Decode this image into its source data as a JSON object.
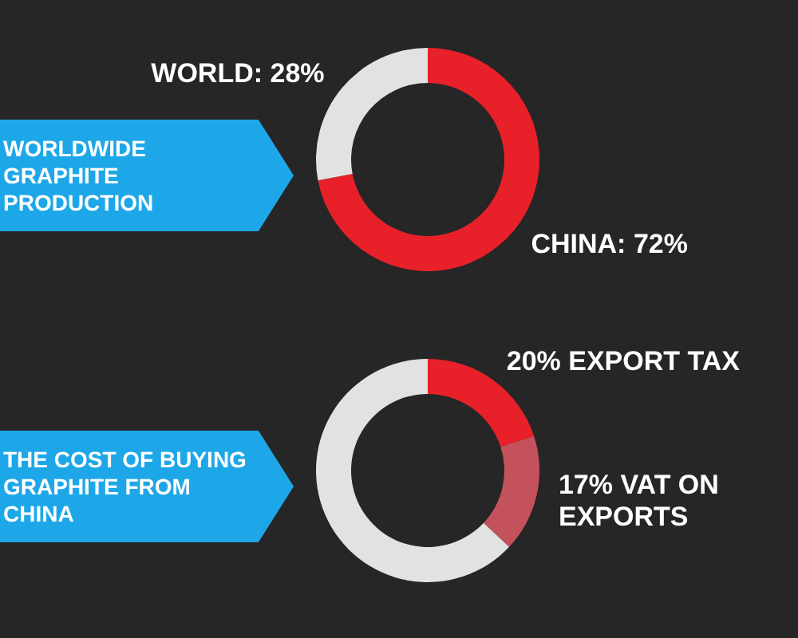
{
  "chart_data": [
    {
      "type": "donut",
      "title": "WORLDWIDE GRAPHITE PRODUCTION",
      "categories": [
        null,
        null
      ],
      "values": [
        72,
        28
      ],
      "colors": [
        "#e8202a",
        "#e2e2e2"
      ],
      "value_labels": [
        "CHINA: 72%",
        "WORLD: 28%"
      ]
    },
    {
      "type": "donut",
      "title": "THE COST OF BUYING GRAPHITE FROM CHINA",
      "categories": [
        null,
        null,
        null
      ],
      "values": [
        20,
        17,
        63
      ],
      "colors": [
        "#e8202a",
        "#c4525c",
        "#e2e2e2"
      ],
      "value_labels": [
        "20% EXPORT TAX",
        "17% VAT ON EXPORTS",
        null
      ]
    }
  ]
}
